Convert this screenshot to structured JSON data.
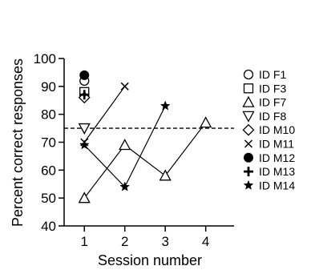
{
  "chart_data": {
    "type": "scatter",
    "title": "",
    "xlabel": "Session number",
    "ylabel": "Percent correct responses",
    "xlim": [
      0.5,
      4.7
    ],
    "ylim": [
      40,
      100
    ],
    "xticks": [
      1,
      2,
      3,
      4
    ],
    "yticks": [
      40,
      50,
      60,
      70,
      80,
      90,
      100
    ],
    "grid": false,
    "legend_position": "right",
    "reference_line": {
      "y": 75,
      "style": "dashed"
    },
    "series": [
      {
        "name": "ID F1",
        "marker": "circle-open",
        "points": [
          [
            1,
            92
          ]
        ]
      },
      {
        "name": "ID F3",
        "marker": "square-open",
        "points": [
          [
            1,
            88
          ]
        ]
      },
      {
        "name": "ID F7",
        "marker": "triangle-open",
        "points": [
          [
            1,
            50
          ],
          [
            2,
            69
          ],
          [
            3,
            58
          ],
          [
            4,
            77
          ]
        ]
      },
      {
        "name": "ID F8",
        "marker": "triangle-down-open",
        "points": [
          [
            1,
            75
          ]
        ]
      },
      {
        "name": "ID M10",
        "marker": "diamond-open",
        "points": [
          [
            1,
            86
          ]
        ]
      },
      {
        "name": "ID M11",
        "marker": "x",
        "points": [
          [
            1,
            70
          ],
          [
            2,
            90
          ]
        ]
      },
      {
        "name": "ID M12",
        "marker": "circle-filled",
        "points": [
          [
            1,
            94
          ]
        ]
      },
      {
        "name": "ID M13",
        "marker": "plus",
        "points": [
          [
            1,
            87
          ]
        ]
      },
      {
        "name": "ID M14",
        "marker": "star",
        "points": [
          [
            1,
            69
          ],
          [
            2,
            54
          ],
          [
            3,
            83
          ]
        ]
      }
    ]
  }
}
